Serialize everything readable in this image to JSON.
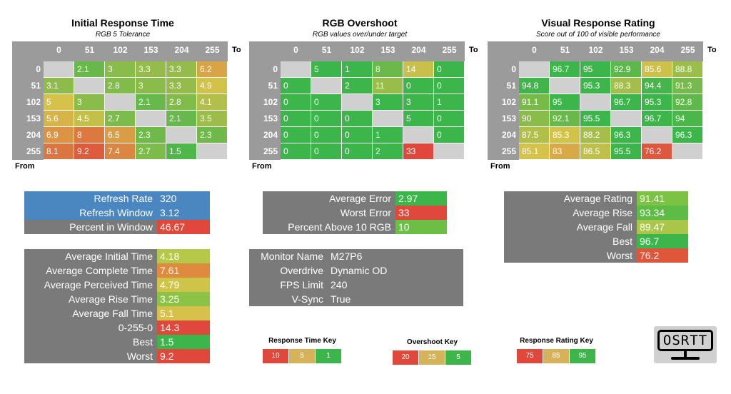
{
  "chart_data": [
    {
      "type": "heatmap",
      "title": "Initial Response Time",
      "subtitle": "RGB 5 Tolerance",
      "to_label": "To",
      "from_label": "From",
      "columns": [
        "0",
        "51",
        "102",
        "153",
        "204",
        "255"
      ],
      "rows": [
        "0",
        "51",
        "102",
        "153",
        "204",
        "255"
      ],
      "values": [
        [
          null,
          2.1,
          3,
          3.3,
          3.3,
          6.2
        ],
        [
          3.1,
          null,
          2.8,
          3,
          3.3,
          4.9
        ],
        [
          5,
          3,
          null,
          2.1,
          2.8,
          4.1
        ],
        [
          5.6,
          4.5,
          2.7,
          null,
          2.1,
          3.5
        ],
        [
          6.9,
          8,
          6.5,
          2.3,
          null,
          2.3
        ],
        [
          8.1,
          9.2,
          7.4,
          2.7,
          1.5,
          null
        ]
      ],
      "color_scale": {
        "stops": [
          [
            1,
            "#3cb54a"
          ],
          [
            5,
            "#d6c24a"
          ],
          [
            10,
            "#e0483b"
          ]
        ]
      }
    },
    {
      "type": "heatmap",
      "title": "RGB Overshoot",
      "subtitle": "RGB values over/under target",
      "to_label": "To",
      "from_label": "From",
      "columns": [
        "0",
        "51",
        "102",
        "153",
        "204",
        "255"
      ],
      "rows": [
        "0",
        "51",
        "102",
        "153",
        "204",
        "255"
      ],
      "values": [
        [
          null,
          5,
          1,
          8,
          14,
          0
        ],
        [
          0,
          null,
          2,
          11,
          0,
          0
        ],
        [
          0,
          0,
          null,
          3,
          3,
          1
        ],
        [
          0,
          0,
          0,
          null,
          5,
          0
        ],
        [
          0,
          0,
          0,
          1,
          null,
          0
        ],
        [
          0,
          0,
          0,
          2,
          33,
          null
        ]
      ],
      "color_scale": {
        "stops": [
          [
            5,
            "#3cb54a"
          ],
          [
            15,
            "#d6c24a"
          ],
          [
            20,
            "#e0483b"
          ]
        ]
      }
    },
    {
      "type": "heatmap",
      "title": "Visual Response Rating",
      "subtitle": "Score out of 100 of visible performance",
      "to_label": "To",
      "from_label": "From",
      "columns": [
        "0",
        "51",
        "102",
        "153",
        "204",
        "255"
      ],
      "rows": [
        "0",
        "51",
        "102",
        "153",
        "204",
        "255"
      ],
      "values": [
        [
          null,
          96.7,
          95,
          92.9,
          85.6,
          88.8
        ],
        [
          94.8,
          null,
          95.3,
          88.3,
          94.4,
          91.3
        ],
        [
          91.1,
          95,
          null,
          96.7,
          95.3,
          92.8
        ],
        [
          90,
          92.1,
          95.5,
          null,
          96.7,
          94
        ],
        [
          87.5,
          85.3,
          88.2,
          96.3,
          null,
          96.3
        ],
        [
          85.1,
          83,
          86.5,
          95.5,
          76.2,
          null
        ]
      ],
      "color_scale": {
        "stops": [
          [
            75,
            "#e0483b"
          ],
          [
            85,
            "#d6c24a"
          ],
          [
            95,
            "#3cb54a"
          ]
        ]
      }
    }
  ],
  "colors": {
    "empty_cell": "#d0d0d0",
    "header_gray": "#9b9b9b",
    "panel_gray": "#7a7a7a",
    "blue": "#4a86c0",
    "green": "#3cb54a",
    "yellow": "#d6c24a",
    "red": "#e0483b"
  },
  "refresh_table": {
    "rows": [
      {
        "label": "Refresh Rate",
        "value": "320"
      },
      {
        "label": "Refresh Window",
        "value": "3.12"
      },
      {
        "label": "Percent in Window",
        "value": "46.67",
        "value_color": "#e0483b"
      }
    ]
  },
  "error_table": {
    "rows": [
      {
        "label": "Average Error",
        "value": "2.97",
        "value_color": "#3cb54a"
      },
      {
        "label": "Worst Error",
        "value": "33",
        "value_color": "#e0483b"
      },
      {
        "label": "Percent Above 10 RGB",
        "value": "10",
        "value_color": "#6bbf45"
      }
    ]
  },
  "rating_table": {
    "rows": [
      {
        "label": "Average Rating",
        "value": "91.41",
        "value_color": "#7cc244"
      },
      {
        "label": "Average Rise",
        "value": "93.34",
        "value_color": "#5dbc46"
      },
      {
        "label": "Average Fall",
        "value": "89.47",
        "value_color": "#a9c648"
      },
      {
        "label": "Best",
        "value": "96.7",
        "value_color": "#3cb54a"
      },
      {
        "label": "Worst",
        "value": "76.2",
        "value_color": "#e0563b"
      }
    ]
  },
  "timing_table": {
    "rows": [
      {
        "label": "Average Initial Time",
        "value": "4.18",
        "value_color": "#b5c848"
      },
      {
        "label": "Average Complete Time",
        "value": "7.61",
        "value_color": "#e08a3f"
      },
      {
        "label": "Average Perceived Time",
        "value": "4.79",
        "value_color": "#cfc44a"
      },
      {
        "label": "Average Rise Time",
        "value": "3.25",
        "value_color": "#8cc246"
      },
      {
        "label": "Average Fall Time",
        "value": "5.1",
        "value_color": "#d6c24a"
      },
      {
        "label": "0-255-0",
        "value": "14.3",
        "value_color": "#e0483b"
      },
      {
        "label": "Best",
        "value": "1.5",
        "value_color": "#3cb54a"
      },
      {
        "label": "Worst",
        "value": "9.2",
        "value_color": "#e0483b"
      }
    ]
  },
  "monitor_table": {
    "rows": [
      {
        "label": "Monitor Name",
        "value": "M27P6"
      },
      {
        "label": "Overdrive",
        "value": "Dynamic OD"
      },
      {
        "label": "FPS Limit",
        "value": "240"
      },
      {
        "label": "V-Sync",
        "value": "True"
      }
    ]
  },
  "keys": [
    {
      "title": "Response Time Key",
      "cells": [
        {
          "label": "10",
          "color": "#e0483b"
        },
        {
          "label": "5",
          "color": "#d6b25a"
        },
        {
          "label": "1",
          "color": "#3cb54a"
        }
      ]
    },
    {
      "title": "Overshoot Key",
      "cells": [
        {
          "label": "20",
          "color": "#e0483b"
        },
        {
          "label": "15",
          "color": "#d6b25a"
        },
        {
          "label": "5",
          "color": "#3cb54a"
        }
      ]
    },
    {
      "title": "Response Rating Key",
      "cells": [
        {
          "label": "75",
          "color": "#e0483b"
        },
        {
          "label": "85",
          "color": "#d6b25a"
        },
        {
          "label": "95",
          "color": "#3cb54a"
        }
      ]
    }
  ],
  "logo": {
    "text": "OSRTT"
  }
}
